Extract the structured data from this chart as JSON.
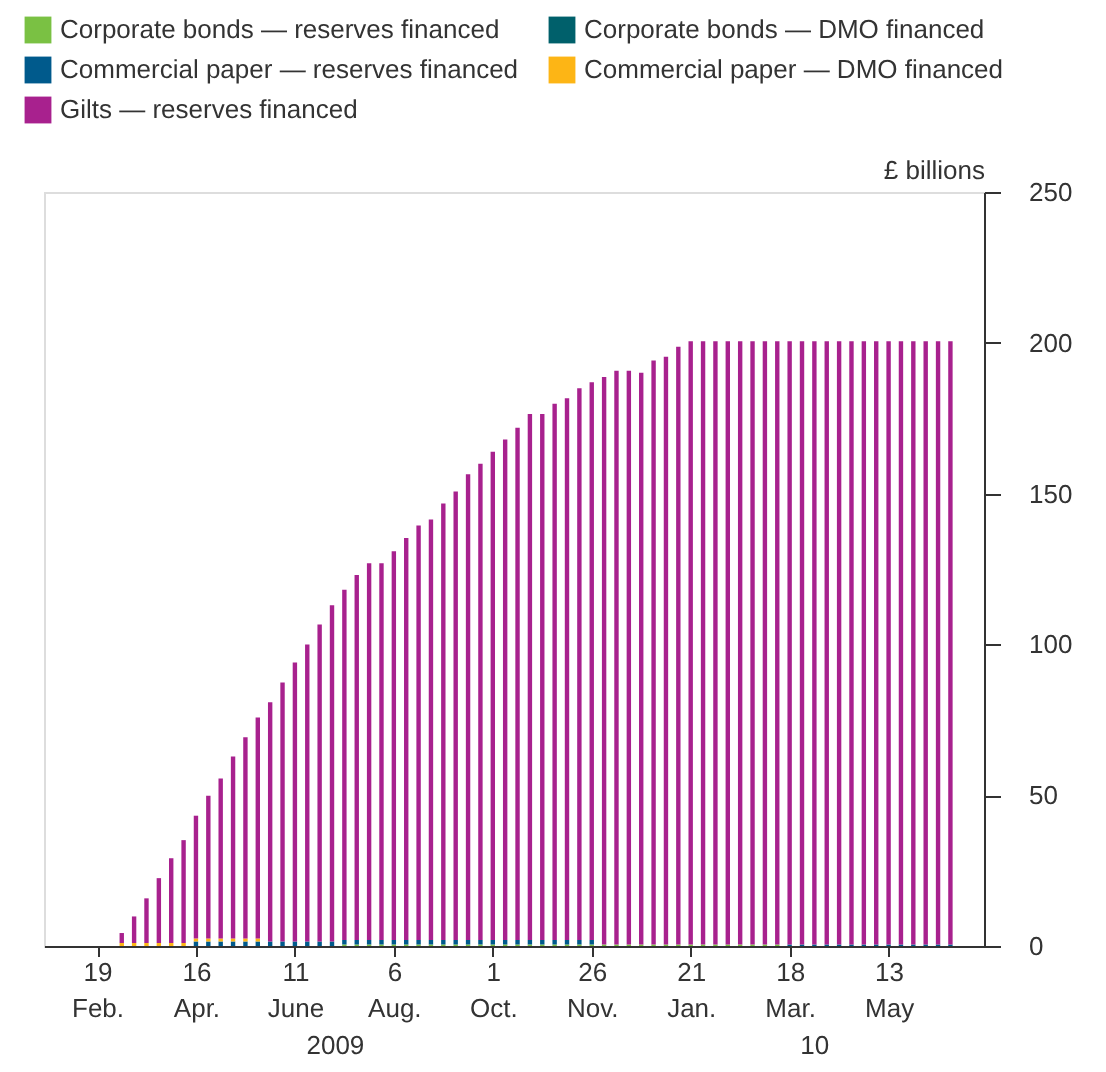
{
  "chart_data": {
    "type": "bar",
    "stacked": true,
    "ylabel": "£ billions",
    "x": [
      "2009-02-19",
      "2009-02-26",
      "2009-03-05",
      "2009-03-12",
      "2009-03-19",
      "2009-03-26",
      "2009-04-02",
      "2009-04-09",
      "2009-04-16",
      "2009-04-23",
      "2009-04-30",
      "2009-05-07",
      "2009-05-14",
      "2009-05-21",
      "2009-05-28",
      "2009-06-04",
      "2009-06-11",
      "2009-06-18",
      "2009-06-25",
      "2009-07-02",
      "2009-07-09",
      "2009-07-16",
      "2009-07-23",
      "2009-07-30",
      "2009-08-06",
      "2009-08-13",
      "2009-08-20",
      "2009-08-27",
      "2009-09-03",
      "2009-09-10",
      "2009-09-17",
      "2009-09-24",
      "2009-10-01",
      "2009-10-08",
      "2009-10-15",
      "2009-10-22",
      "2009-10-29",
      "2009-11-05",
      "2009-11-12",
      "2009-11-19",
      "2009-11-26",
      "2009-12-03",
      "2009-12-10",
      "2009-12-17",
      "2009-12-24",
      "2009-12-31",
      "2010-01-07",
      "2010-01-14",
      "2010-01-21",
      "2010-01-28",
      "2010-02-04",
      "2010-02-11",
      "2010-02-18",
      "2010-02-25",
      "2010-03-04",
      "2010-03-11",
      "2010-03-18",
      "2010-03-25",
      "2010-04-01",
      "2010-04-08",
      "2010-04-15",
      "2010-04-22",
      "2010-04-29",
      "2010-05-06",
      "2010-05-13",
      "2010-05-20",
      "2010-05-27",
      "2010-06-03",
      "2010-06-10",
      "2010-06-17"
    ],
    "series": [
      {
        "name": "Corporate bonds — reserves financed",
        "color": "#7ac143",
        "values": [
          0,
          0,
          0,
          0,
          0,
          0,
          0,
          0,
          0,
          0,
          0,
          0,
          0,
          0,
          0,
          0,
          0,
          0,
          0,
          0,
          0.5,
          0.5,
          0.5,
          0.5,
          0.5,
          0.5,
          0.5,
          0.5,
          0.5,
          0.5,
          0.5,
          0.5,
          0.5,
          0.5,
          0.5,
          0.5,
          0.5,
          0.5,
          0.5,
          0.5,
          0.5,
          0.5,
          0.5,
          0.5,
          0.5,
          0.5,
          0.5,
          0.5,
          0.5,
          0.5,
          0.5,
          0.5,
          0.5,
          0.5,
          0.5,
          0.5,
          0,
          0,
          0,
          0,
          0,
          0,
          0,
          0,
          0,
          0,
          0,
          0,
          0,
          0
        ]
      },
      {
        "name": "Corporate bonds — DMO financed",
        "color": "#00606b",
        "values": [
          0,
          0,
          0,
          0,
          0,
          0,
          0,
          0,
          0,
          0,
          0,
          0,
          0,
          0,
          0,
          0,
          0,
          0,
          0,
          0,
          0,
          0,
          0,
          0,
          0,
          0,
          0,
          0,
          0,
          0,
          0,
          0,
          0,
          0,
          0,
          0,
          0,
          0,
          0,
          0,
          0,
          0,
          0,
          0,
          0,
          0,
          0,
          0,
          0,
          0,
          0,
          0,
          0,
          0,
          0,
          0,
          0,
          0,
          0,
          0,
          0,
          0,
          0,
          0,
          0,
          0,
          0,
          0,
          0,
          0
        ]
      },
      {
        "name": "Commercial paper — reserves financed",
        "color": "#005a8c",
        "values": [
          0,
          0,
          0,
          0,
          0,
          0,
          0,
          0,
          1.5,
          1.5,
          1.5,
          1.5,
          1.5,
          1.5,
          1.5,
          1.5,
          1.5,
          1.5,
          1.5,
          1.5,
          1.5,
          1.5,
          1.5,
          1.5,
          1.5,
          1.5,
          1.5,
          1.5,
          1.5,
          1.5,
          1.5,
          1.5,
          1.5,
          1.5,
          1.5,
          1.5,
          1.5,
          1.5,
          1.5,
          1.5,
          1.5,
          0,
          0,
          0,
          0,
          0,
          0,
          0,
          0,
          0,
          0,
          0,
          0,
          0,
          0,
          0,
          0.5,
          0.5,
          0.5,
          0.5,
          0.5,
          0.5,
          0.5,
          0.5,
          0.5,
          0.5,
          0.5,
          0.5,
          0.5,
          0.5
        ]
      },
      {
        "name": "Commercial paper — DMO financed",
        "color": "#fdb515",
        "values": [
          0,
          0,
          1,
          1,
          1,
          1,
          1,
          1,
          1,
          1,
          1,
          1,
          1,
          1,
          0,
          0,
          0,
          0,
          0,
          0,
          0,
          0,
          0,
          0,
          0,
          0,
          0,
          0,
          0,
          0,
          0,
          0,
          0,
          0,
          0,
          0,
          0,
          0,
          0,
          0,
          0,
          0,
          0,
          0,
          0,
          0,
          0,
          0,
          0,
          0,
          0,
          0,
          0,
          0,
          0,
          0,
          0,
          0,
          0,
          0,
          0,
          0,
          0,
          0,
          0,
          0,
          0,
          0,
          0,
          0
        ]
      },
      {
        "name": "Gilts — reserves financed",
        "color": "#a8218e",
        "values": [
          0,
          0,
          3.3,
          8.8,
          14.8,
          21.5,
          28.1,
          34.1,
          40.7,
          47.3,
          53,
          60.3,
          66.7,
          73.3,
          79.3,
          85.9,
          92.5,
          98.5,
          105.1,
          111.5,
          116.1,
          121,
          124.9,
          124.9,
          128.9,
          133.3,
          137.4,
          139.4,
          144.7,
          148.7,
          154.4,
          157.9,
          161.9,
          165.9,
          169.8,
          174.4,
          174.4,
          177.8,
          179.6,
          182.9,
          184.9,
          188.2,
          190.2,
          190.2,
          189.6,
          193.6,
          194.9,
          198.2,
          200,
          200,
          200,
          200,
          200,
          200,
          200,
          200,
          200,
          200,
          200,
          200,
          200,
          200,
          200,
          200,
          200,
          200,
          200,
          200,
          200,
          200
        ]
      }
    ],
    "xlim": [
      "2009-01-20",
      "2010-07-06"
    ],
    "xticks": [
      {
        "value": "2009-02-19",
        "label": "19 Feb."
      },
      {
        "value": "2009-04-16",
        "label": "16 Apr."
      },
      {
        "value": "2009-06-11",
        "label": "11 June"
      },
      {
        "value": "2009-08-06",
        "label": "6 Aug."
      },
      {
        "value": "2009-10-01",
        "label": "1 Oct."
      },
      {
        "value": "2009-11-26",
        "label": "26 Nov."
      },
      {
        "value": "2010-01-21",
        "label": "21 Jan."
      },
      {
        "value": "2010-03-18",
        "label": "18 Mar."
      },
      {
        "value": "2010-05-13",
        "label": "13 May"
      }
    ],
    "ylim": [
      0,
      250
    ],
    "yticks": [
      0,
      50,
      100,
      150,
      200,
      250
    ],
    "annotations": [
      "2009",
      "10"
    ],
    "legend": "top left",
    "grid": false
  }
}
